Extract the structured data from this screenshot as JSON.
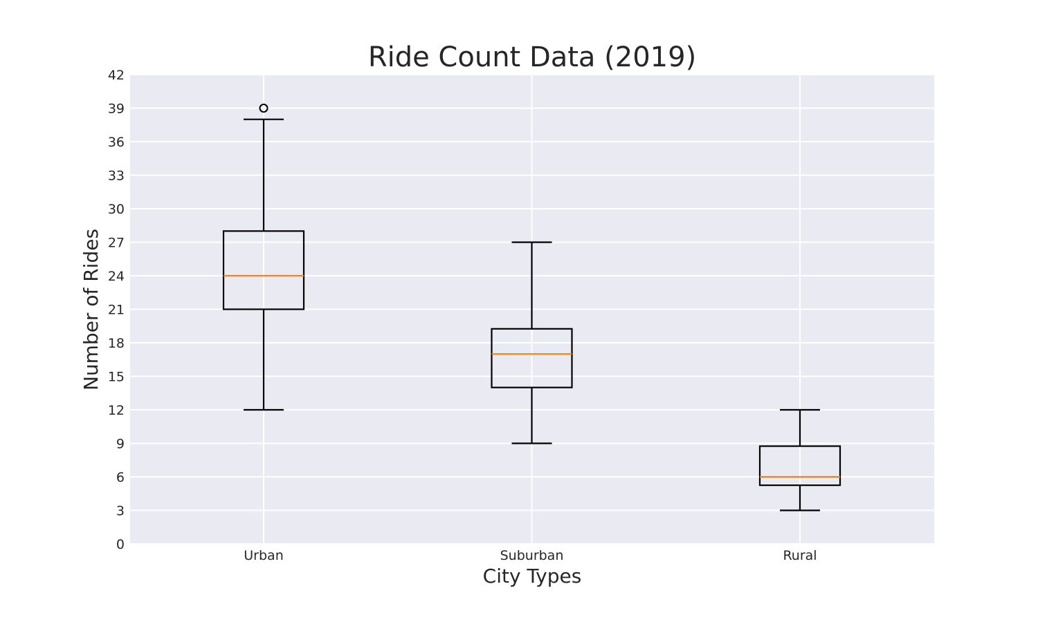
{
  "chart_data": {
    "type": "boxplot",
    "title": "Ride Count Data (2019)",
    "xlabel": "City Types",
    "ylabel": "Number of Rides",
    "ylim": [
      0,
      42
    ],
    "yticks": [
      0,
      3,
      6,
      9,
      12,
      15,
      18,
      21,
      24,
      27,
      30,
      33,
      36,
      39,
      42
    ],
    "grid": true,
    "categories": [
      "Urban",
      "Suburban",
      "Rural"
    ],
    "boxes": [
      {
        "category": "Urban",
        "whisker_low": 12,
        "q1": 21,
        "median": 24,
        "q3": 28,
        "whisker_high": 38,
        "outliers": [
          39
        ]
      },
      {
        "category": "Suburban",
        "whisker_low": 9,
        "q1": 14,
        "median": 17,
        "q3": 19.25,
        "whisker_high": 27,
        "outliers": []
      },
      {
        "category": "Rural",
        "whisker_low": 3,
        "q1": 5.25,
        "median": 6,
        "q3": 8.75,
        "whisker_high": 12,
        "outliers": []
      }
    ],
    "colors": {
      "background": "#eaeaf2",
      "grid": "#ffffff",
      "box": "#000000",
      "median": "#ff7f0e"
    }
  }
}
